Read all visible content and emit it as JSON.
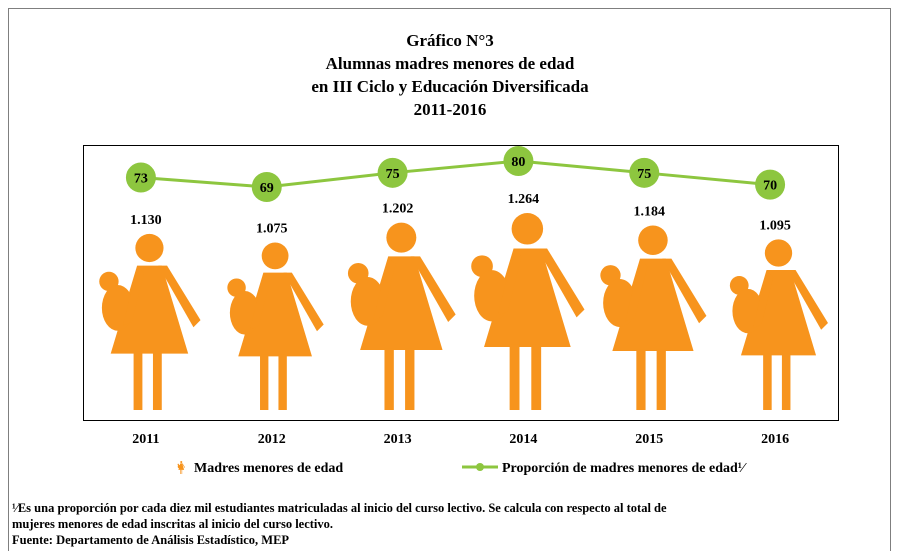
{
  "chart_data": {
    "type": "pictograph",
    "title": [
      "Gráfico N°3",
      "Alumnas madres menores de edad",
      "en III Ciclo y Educación Diversificada",
      "2011-2016"
    ],
    "categories": [
      "2011",
      "2012",
      "2013",
      "2014",
      "2015",
      "2016"
    ],
    "series": [
      {
        "name": "Madres menores de edad",
        "color": "#f7941d",
        "values": [
          1130,
          1075,
          1202,
          1264,
          1184,
          1095
        ],
        "value_labels": [
          "1.130",
          "1.075",
          "1.202",
          "1.264",
          "1.184",
          "1.095"
        ]
      },
      {
        "name": "Proporción de madres menores de edad¹⁄",
        "color": "#8dc63f",
        "values": [
          73,
          69,
          75,
          80,
          75,
          70
        ]
      }
    ],
    "footnote": [
      "¹⁄Es una proporción por cada diez mil estudiantes matriculadas al inicio del curso lectivo. Se calcula con respecto al total de",
      "mujeres menores de edad inscritas al inicio del curso lectivo."
    ],
    "source": "Fuente: Departamento de Análisis Estadístico, MEP"
  }
}
